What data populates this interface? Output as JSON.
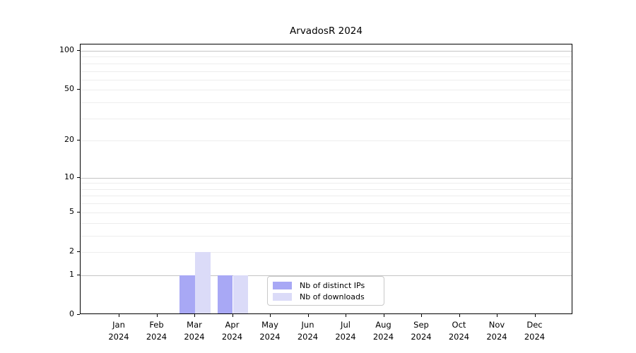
{
  "chart_data": {
    "type": "bar",
    "title": "ArvadosR 2024",
    "categories": [
      "Jan\n2024",
      "Feb\n2024",
      "Mar\n2024",
      "Apr\n2024",
      "May\n2024",
      "Jun\n2024",
      "Jul\n2024",
      "Aug\n2024",
      "Sep\n2024",
      "Oct\n2024",
      "Nov\n2024",
      "Dec\n2024"
    ],
    "series": [
      {
        "name": "Nb of distinct IPs",
        "color": "#a8a8f5",
        "values": [
          0,
          0,
          1,
          1,
          0,
          0,
          0,
          0,
          0,
          0,
          0,
          0
        ]
      },
      {
        "name": "Nb of downloads",
        "color": "#dbdbf8",
        "values": [
          0,
          0,
          2,
          1,
          0,
          0,
          0,
          0,
          0,
          0,
          0,
          0
        ]
      }
    ],
    "yscale": "log1p",
    "yticks": [
      0,
      1,
      2,
      5,
      10,
      20,
      50,
      100
    ],
    "ylim": [
      0,
      112
    ],
    "grid": {
      "minor_color": "#ededed",
      "major_values": [
        1,
        10,
        100
      ],
      "major_color": "#c4c4c4"
    },
    "legend_position": "lower center"
  }
}
